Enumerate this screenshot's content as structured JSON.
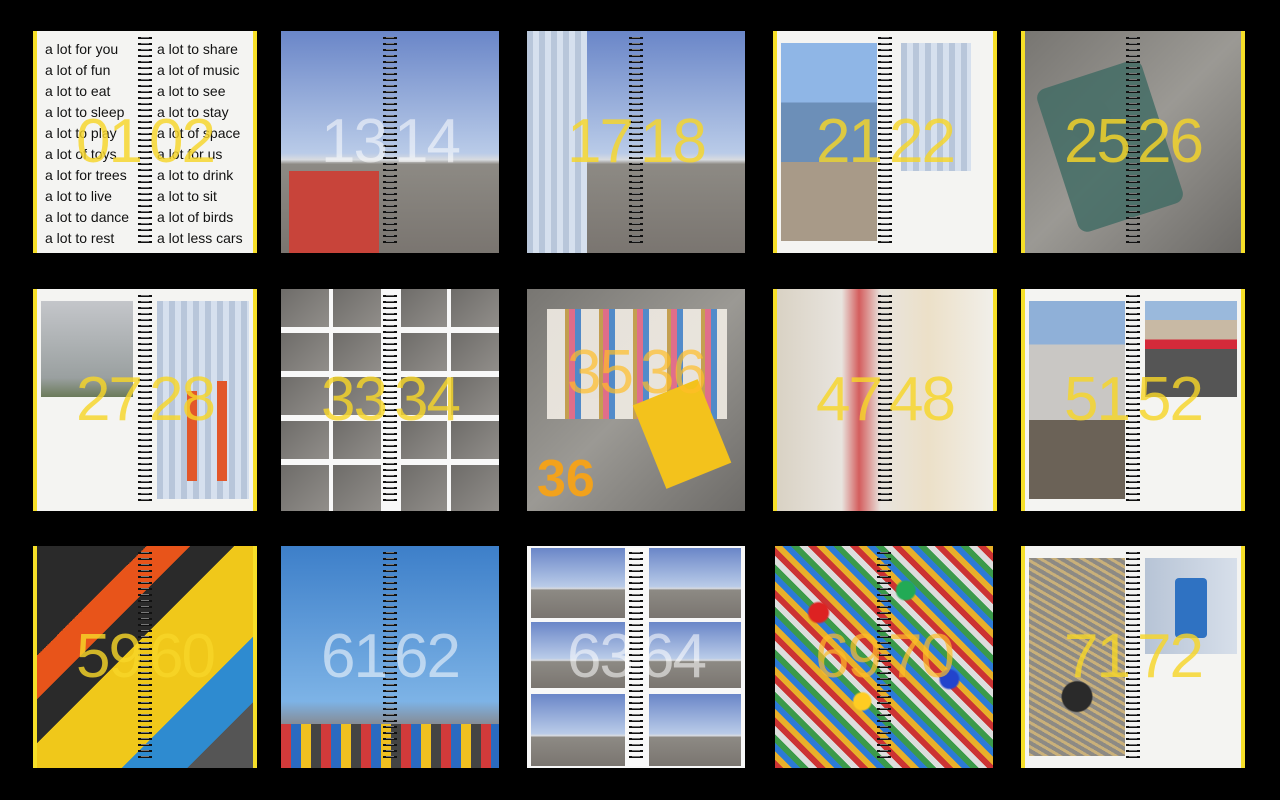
{
  "spreads": [
    {
      "left": "01",
      "right": "02"
    },
    {
      "left": "13",
      "right": "14"
    },
    {
      "left": "17",
      "right": "18"
    },
    {
      "left": "21",
      "right": "22"
    },
    {
      "left": "25",
      "right": "26"
    },
    {
      "left": "27",
      "right": "28"
    },
    {
      "left": "33",
      "right": "34"
    },
    {
      "left": "35",
      "right": "36",
      "extra": "36"
    },
    {
      "left": "47",
      "right": "48"
    },
    {
      "left": "51",
      "right": "52"
    },
    {
      "left": "59",
      "right": "60"
    },
    {
      "left": "61",
      "right": "62"
    },
    {
      "left": "63",
      "right": "64"
    },
    {
      "left": "69",
      "right": "70"
    },
    {
      "left": "71",
      "right": "72"
    }
  ],
  "text_left": [
    "a lot for you",
    "a lot of fun",
    "a lot to eat",
    "a lot to sleep",
    "a lot to play",
    "a lot of toys",
    "a lot for trees",
    "a lot to live",
    "a lot to dance",
    "a lot to rest"
  ],
  "text_right": [
    "a lot to share",
    "a lot of music",
    "a lot to see",
    "a lot to stay",
    "a lot of space",
    "a lot for us",
    "a lot to drink",
    "a lot to sit",
    "a lot of birds",
    "a lot less cars"
  ],
  "colors": {
    "accent": "#f6df28",
    "background": "#000000"
  }
}
